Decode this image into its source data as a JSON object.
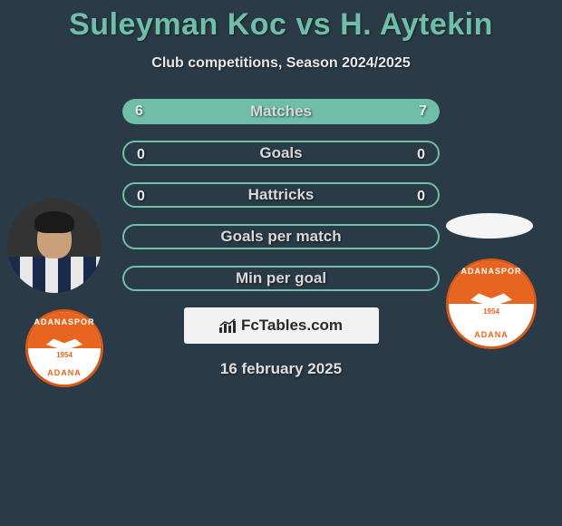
{
  "title": "Suleyman Koc vs H. Aytekin",
  "subtitle": "Club competitions, Season 2024/2025",
  "date": "16 february 2025",
  "logo_text": "FcTables.com",
  "colors": {
    "background": "#2a3b47",
    "accent": "#6fbfa8",
    "text_light": "#e8e8e8",
    "club_orange": "#e8651f",
    "club_border": "#d85a1a"
  },
  "club": {
    "name_top": "ADANASPOR",
    "name_bottom": "ADANA",
    "year": "1954"
  },
  "stats": [
    {
      "label": "Matches",
      "left_val": "6",
      "right_val": "7",
      "left_pct": 46,
      "right_pct": 54,
      "show_vals": true,
      "filled": true
    },
    {
      "label": "Goals",
      "left_val": "0",
      "right_val": "0",
      "left_pct": 0,
      "right_pct": 0,
      "show_vals": true,
      "filled": false
    },
    {
      "label": "Hattricks",
      "left_val": "0",
      "right_val": "0",
      "left_pct": 0,
      "right_pct": 0,
      "show_vals": true,
      "filled": false
    },
    {
      "label": "Goals per match",
      "left_val": "",
      "right_val": "",
      "left_pct": 0,
      "right_pct": 0,
      "show_vals": false,
      "filled": false
    },
    {
      "label": "Min per goal",
      "left_val": "",
      "right_val": "",
      "left_pct": 0,
      "right_pct": 0,
      "show_vals": false,
      "filled": false
    }
  ]
}
